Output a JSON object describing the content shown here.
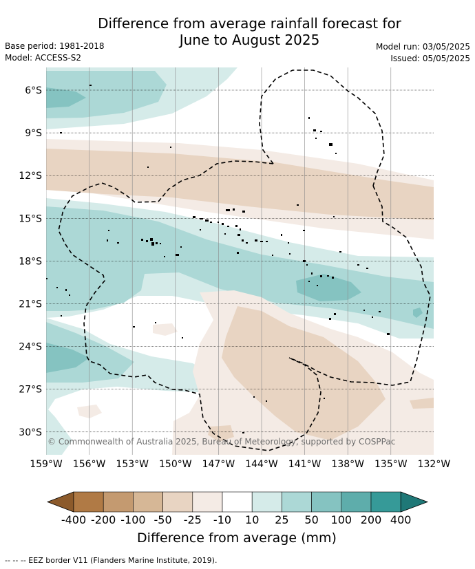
{
  "title": {
    "line1": "Difference from average rainfall forecast for",
    "line2": "June to August 2025"
  },
  "meta": {
    "base_period": "Base period: 1981-2018",
    "model": "Model: ACCESS-S2",
    "model_run": "Model run: 03/05/2025",
    "issued": "Issued: 05/05/2025"
  },
  "map": {
    "lat_labels": [
      "6°S",
      "9°S",
      "12°S",
      "15°S",
      "18°S",
      "21°S",
      "24°S",
      "27°S",
      "30°S"
    ],
    "lon_labels": [
      "159°W",
      "156°W",
      "153°W",
      "150°W",
      "147°W",
      "144°W",
      "141°W",
      "138°W",
      "135°W",
      "132°W"
    ],
    "copyright": "© Commonwealth of Australia 2025, Bureau of Meteorology, supported by COSPPac"
  },
  "colorbar": {
    "title": "Difference from average (mm)",
    "labels": [
      "-400",
      "-200",
      "-100",
      "-50",
      "-25",
      "-10",
      "10",
      "25",
      "50",
      "100",
      "200",
      "400"
    ],
    "colors": [
      "#8c5a2b",
      "#b07a45",
      "#c49a70",
      "#d6b796",
      "#e8d4c2",
      "#f4ebe5",
      "#ffffff",
      "#d5ebe9",
      "#acd8d6",
      "#85c3c1",
      "#5eadab",
      "#369a98",
      "#1f7877"
    ]
  },
  "footnote": "-- -- -- EEZ border V11 (Flanders Marine Institute, 2019)."
}
